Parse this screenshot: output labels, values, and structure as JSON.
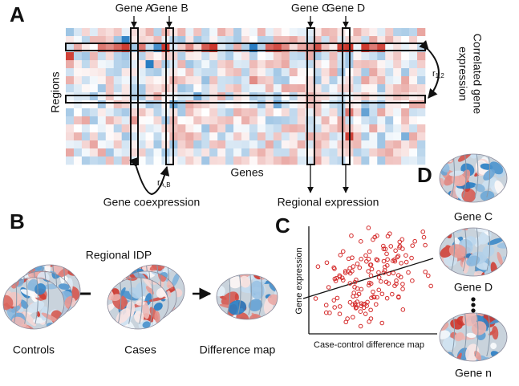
{
  "panels": {
    "A": {
      "letter": "A",
      "genes": [
        "Gene A",
        "Gene B",
        "Gene C",
        "Gene D"
      ],
      "y_label": "Regions",
      "x_label": "Genes",
      "right_label": [
        "Correlated gene",
        "expression"
      ],
      "row_corr": {
        "symbol": "r",
        "subscript": "1,2"
      },
      "col_corr": {
        "symbol": "r",
        "subscript": "A,B"
      },
      "coexpression": "Gene coexpression",
      "regional": "Regional expression"
    },
    "B": {
      "letter": "B",
      "title": "Regional IDP",
      "labels": [
        "Controls",
        "Cases",
        "Difference map"
      ]
    },
    "C": {
      "letter": "C",
      "y_label": "Gene expression",
      "x_label": "Case-control difference map"
    },
    "D": {
      "letter": "D",
      "labels": [
        "Gene C",
        "Gene D",
        "Gene n"
      ]
    }
  }
}
